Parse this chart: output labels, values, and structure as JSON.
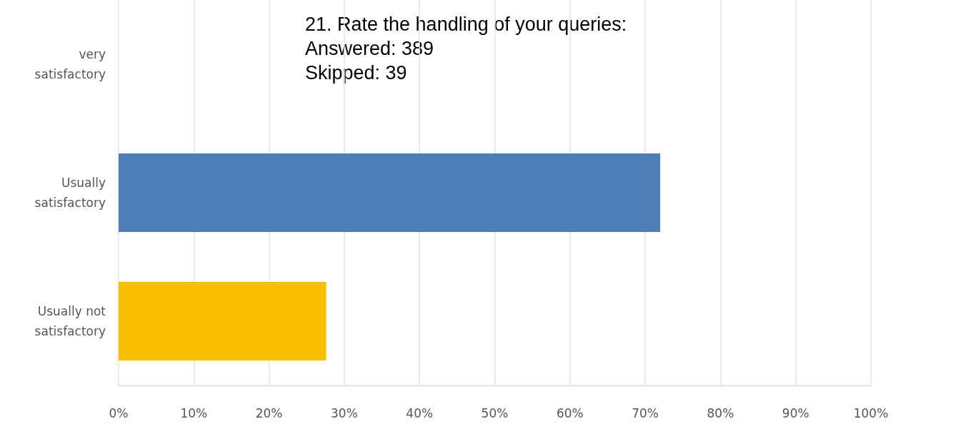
{
  "chart_data": {
    "type": "bar",
    "orientation": "horizontal",
    "title": "21. Rate the handling of your queries:",
    "annotations": [
      "Answered: 389",
      "Skipped: 39"
    ],
    "categories": [
      "very\nsatisfactory",
      "Usually\nsatisfactory",
      "Usually not\nsatisfactory"
    ],
    "values": [
      0,
      72,
      27.6
    ],
    "colors": [
      "#4f7db6",
      "#4f7db6",
      "#f7bf00"
    ],
    "xlim": [
      0,
      100
    ],
    "xticks": [
      {
        "value": 0,
        "label": "0%"
      },
      {
        "value": 10,
        "label": "10%"
      },
      {
        "value": 20,
        "label": "20%"
      },
      {
        "value": 30,
        "label": "30%"
      },
      {
        "value": 40,
        "label": "40%"
      },
      {
        "value": 50,
        "label": "50%"
      },
      {
        "value": 60,
        "label": "60%"
      },
      {
        "value": 70,
        "label": "70%"
      },
      {
        "value": 80,
        "label": "80%"
      },
      {
        "value": 90,
        "label": "90%"
      },
      {
        "value": 100,
        "label": "100%"
      }
    ],
    "grid": "x"
  }
}
